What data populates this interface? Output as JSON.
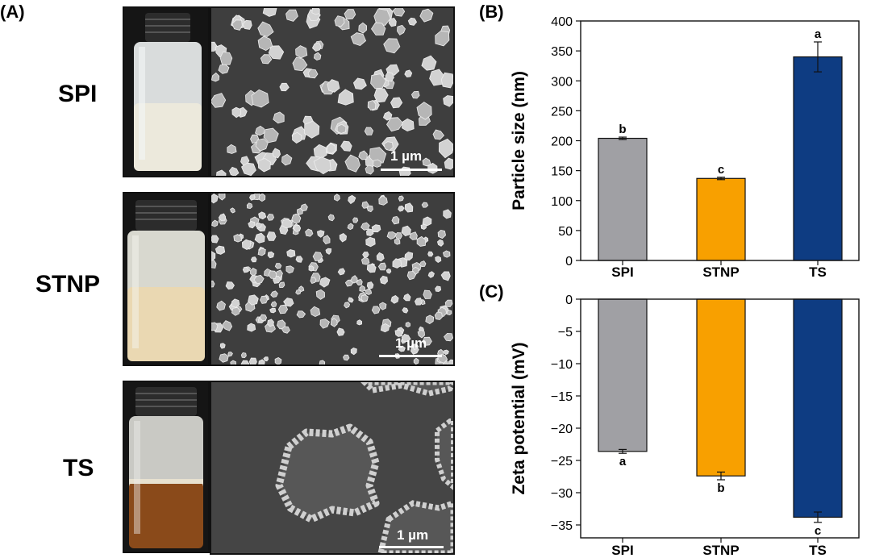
{
  "panels": {
    "a_label": "(A)",
    "b_label": "(B)",
    "c_label": "(C)"
  },
  "samples": [
    {
      "name": "SPI",
      "liquid_color": "#ece9dc",
      "scalebar": "1 µm"
    },
    {
      "name": "STNP",
      "liquid_color": "#ead8b2",
      "scalebar": "1 µm"
    },
    {
      "name": "TS",
      "liquid_color": "#8a4a1a",
      "scalebar": "1 µm"
    }
  ],
  "chart_data": [
    {
      "type": "bar",
      "panel": "(B)",
      "categories": [
        "SPI",
        "STNP",
        "TS"
      ],
      "values": [
        204,
        137,
        340
      ],
      "errors": [
        2,
        2,
        25
      ],
      "significance": [
        "b",
        "c",
        "a"
      ],
      "colors": [
        "#a0a0a4",
        "#f8a000",
        "#0e3c82"
      ],
      "ylabel": "Particle size (nm)",
      "xlabel": "",
      "ylim": [
        0,
        400
      ],
      "yticks": [
        0,
        50,
        100,
        150,
        200,
        250,
        300,
        350,
        400
      ],
      "grid": false
    },
    {
      "type": "bar",
      "panel": "(C)",
      "categories": [
        "SPI",
        "STNP",
        "TS"
      ],
      "values": [
        -23.6,
        -27.4,
        -33.8
      ],
      "errors": [
        0.3,
        0.6,
        0.8
      ],
      "significance": [
        "a",
        "b",
        "c"
      ],
      "colors": [
        "#a0a0a4",
        "#f8a000",
        "#0e3c82"
      ],
      "ylabel": "Zeta potential (mV)",
      "xlabel": "",
      "ylim": [
        -37,
        0
      ],
      "yticks": [
        0,
        -5,
        -10,
        -15,
        -20,
        -25,
        -30,
        -35
      ],
      "grid": false
    }
  ]
}
